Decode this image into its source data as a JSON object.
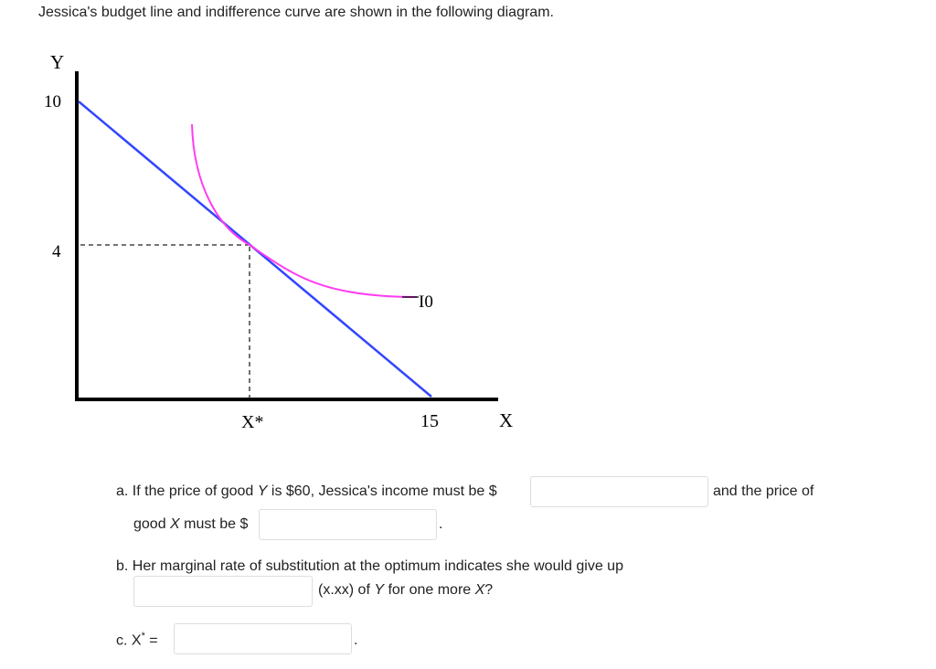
{
  "intro": "Jessica's budget line and indifference curve are shown in the following diagram.",
  "diagram": {
    "y_axis_label": "Y",
    "x_axis_label": "X",
    "y_tick_top": "10",
    "y_tick_mid": "4",
    "x_tick_star": "X*",
    "x_tick_end": "15",
    "curve_label": "I0",
    "colors": {
      "budget_line": "#3346ff",
      "indifference_curve": "#ff3df0",
      "axes": "#000000"
    }
  },
  "questions": {
    "a": {
      "part1": "a. If the price of good ",
      "var1": "Y",
      "part2": " is $60, Jessica's income must be $",
      "after1": "and the price of",
      "part3": "good ",
      "var2": "X",
      "part4": " must be $",
      "end": "."
    },
    "b": {
      "text": "b. Her marginal rate of substitution at the optimum indicates she would give up",
      "part1": "(x.xx) of ",
      "var1": "Y",
      "part2": " for one more ",
      "var2": "X",
      "part3": "?"
    },
    "c": {
      "label": "c. X",
      "sup": "*",
      "eq": " =",
      "end": "."
    }
  }
}
